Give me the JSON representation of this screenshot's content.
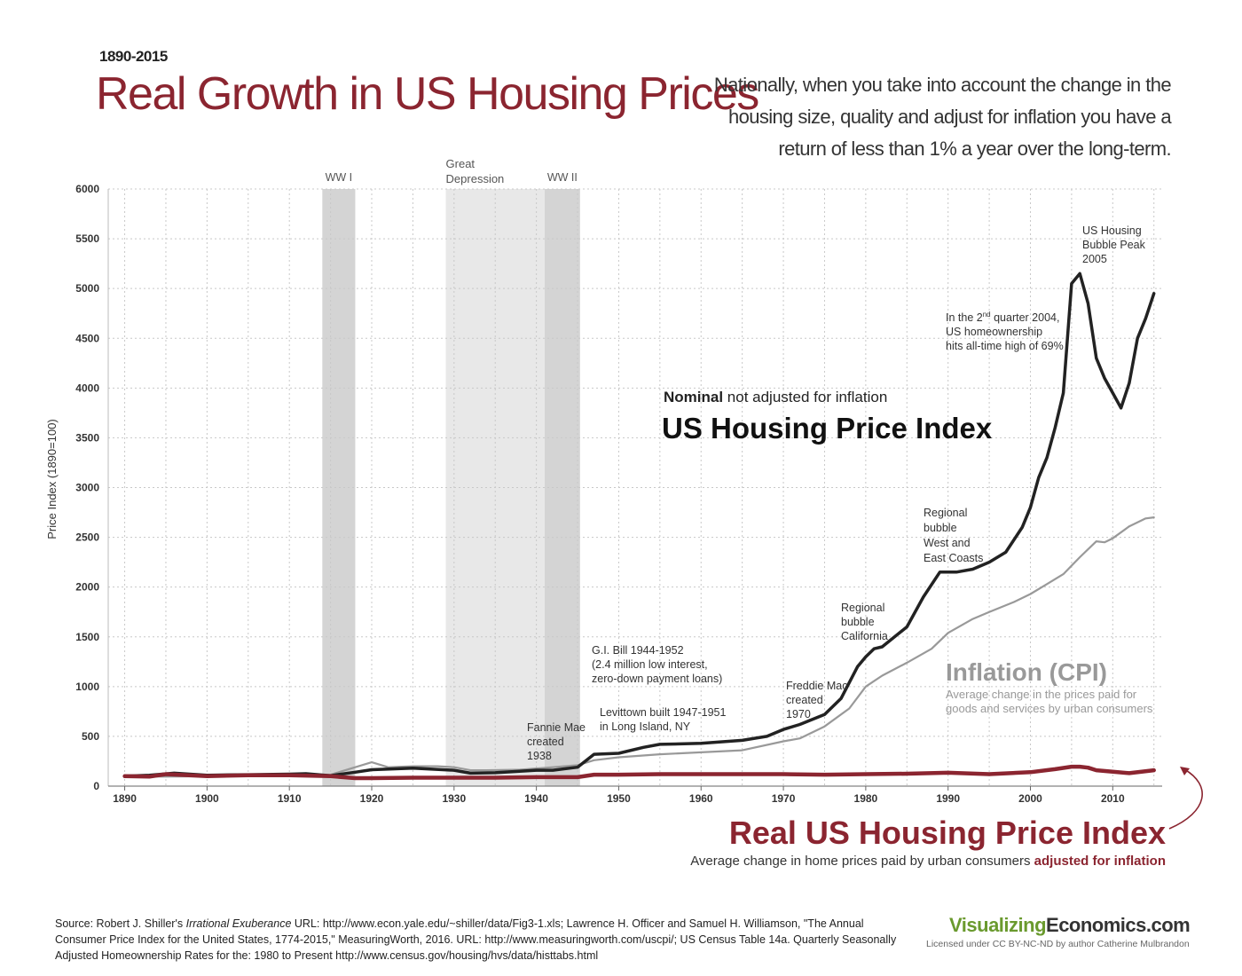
{
  "header": {
    "years": "1890-2015",
    "title": "Real Growth in US Housing Prices",
    "subtitle": "Nationally, when you take into account the change in the housing size, quality and adjust for inflation you have a return of less than 1% a year over the long-term."
  },
  "chart_data": {
    "type": "line",
    "ylabel": "Price Index  (1890=100)",
    "xlabel": "",
    "xlim": [
      1888,
      2016
    ],
    "ylim": [
      0,
      6000
    ],
    "grid": true,
    "x_ticks": [
      1890,
      1900,
      1910,
      1920,
      1930,
      1940,
      1950,
      1960,
      1970,
      1980,
      1990,
      2000,
      2010
    ],
    "y_ticks": [
      0,
      500,
      1000,
      1500,
      2000,
      2500,
      3000,
      3500,
      4000,
      4500,
      5000,
      5500,
      6000
    ],
    "periods": [
      {
        "label": "WW I",
        "start": 1914,
        "end": 1918,
        "color": "#d4d4d4"
      },
      {
        "label": "Great Depression",
        "start": 1929,
        "end": 1941,
        "color": "#e8e8e8"
      },
      {
        "label": "WW II",
        "start": 1941,
        "end": 1945.3,
        "color": "#d4d4d4"
      }
    ],
    "series": [
      {
        "name": "Inflation (CPI)",
        "color": "#999999",
        "x": [
          1890,
          1895,
          1900,
          1905,
          1910,
          1915,
          1918,
          1920,
          1922,
          1925,
          1928,
          1930,
          1932,
          1934,
          1938,
          1942,
          1945,
          1947,
          1950,
          1955,
          1960,
          1965,
          1970,
          1972,
          1975,
          1978,
          1980,
          1982,
          1985,
          1988,
          1990,
          1993,
          1995,
          1998,
          2000,
          2002,
          2004,
          2006,
          2008,
          2009,
          2010,
          2012,
          2014,
          2015
        ],
        "values": [
          100,
          95,
          100,
          105,
          115,
          115,
          190,
          240,
          190,
          200,
          200,
          190,
          160,
          160,
          165,
          190,
          210,
          260,
          290,
          320,
          340,
          360,
          450,
          480,
          600,
          780,
          1000,
          1110,
          1240,
          1380,
          1540,
          1680,
          1750,
          1850,
          1930,
          2030,
          2130,
          2300,
          2460,
          2450,
          2490,
          2610,
          2690,
          2700
        ]
      },
      {
        "name": "US Housing Price Index",
        "color": "#222222",
        "x": [
          1890,
          1893,
          1896,
          1900,
          1905,
          1910,
          1912,
          1915,
          1918,
          1920,
          1925,
          1930,
          1932,
          1935,
          1940,
          1942,
          1945,
          1947,
          1950,
          1953,
          1955,
          1960,
          1965,
          1968,
          1970,
          1972,
          1975,
          1977,
          1979,
          1980,
          1981,
          1982,
          1985,
          1987,
          1989,
          1991,
          1993,
          1995,
          1997,
          1999,
          2000,
          2001,
          2002,
          2003,
          2004,
          2005,
          2006,
          2007,
          2008,
          2009,
          2010,
          2011,
          2012,
          2013,
          2014,
          2015
        ],
        "values": [
          100,
          110,
          130,
          110,
          115,
          120,
          125,
          105,
          140,
          165,
          180,
          160,
          130,
          135,
          160,
          160,
          190,
          320,
          330,
          390,
          420,
          430,
          460,
          500,
          570,
          620,
          720,
          880,
          1200,
          1300,
          1380,
          1400,
          1600,
          1900,
          2150,
          2150,
          2180,
          2250,
          2350,
          2600,
          2800,
          3100,
          3300,
          3600,
          3950,
          5050,
          5150,
          4850,
          4300,
          4100,
          3950,
          3800,
          4050,
          4500,
          4700,
          4950
        ]
      },
      {
        "name": "Real US Housing Price Index",
        "color": "#8b2530",
        "x": [
          1890,
          1893,
          1895,
          1900,
          1905,
          1910,
          1915,
          1918,
          1920,
          1925,
          1930,
          1935,
          1940,
          1945,
          1947,
          1950,
          1955,
          1960,
          1965,
          1970,
          1975,
          1980,
          1985,
          1990,
          1995,
          2000,
          2003,
          2005,
          2006,
          2007,
          2008,
          2010,
          2012,
          2015
        ],
        "values": [
          100,
          95,
          120,
          100,
          110,
          110,
          100,
          80,
          80,
          85,
          85,
          85,
          90,
          90,
          115,
          115,
          120,
          120,
          120,
          120,
          115,
          120,
          125,
          135,
          120,
          140,
          170,
          195,
          195,
          185,
          160,
          145,
          130,
          160
        ]
      }
    ],
    "annotations": {
      "great_depression": "Great\nDepression",
      "fannie": "Fannie Mae\ncreated\n1938",
      "gibill": "G.I. Bill  1944-1952\n(2.4 million low interest,\nzero-down payment loans)",
      "levittown": "Levittown built 1947-1951\nin Long Island, NY",
      "freddie": "Freddie Mac\ncreated\n1970",
      "california": "Regional\nbubble\nCalifornia",
      "westeast": "Regional\nbubble\nWest and\nEast Coasts",
      "ownership_pre": "In the 2",
      "ownership_sup": "nd",
      "ownership_post": " quarter 2004,",
      "ownership_rest": "US homeownership\nhits all-time high of 69%",
      "peak": "US Housing\nBubble Peak\n2005"
    },
    "labels": {
      "nominal_bold": "Nominal",
      "nominal_rest": " not adjusted for inflation",
      "nominal_title": "US Housing Price Index",
      "cpi_title": "Inflation (CPI)",
      "cpi_desc": "Average change in the prices paid for\ngoods and services by urban consumers",
      "real_title": "Real US Housing Price Index",
      "real_desc": "Average change in home prices paid by urban consumers ",
      "real_desc_bold": "adjusted for inflation"
    }
  },
  "footer": {
    "source_prefix": "Source: Robert J. Shiller's ",
    "source_italic": "Irrational Exuberance",
    "source_rest": " URL: http://www.econ.yale.edu/~shiller/data/Fig3-1.xls; Lawrence H. Officer and Samuel H. Williamson, \"The Annual Consumer Price Index for the United States, 1774-2015,\" MeasuringWorth, 2016. URL: http://www.measuringworth.com/uscpi/; US Census Table 14a. Quarterly Seasonally Adjusted Homeownership Rates for the: 1980 to Present http://www.census.gov/housing/hvs/data/histtabs.html",
    "brand_a": "Visualizing",
    "brand_b": "Economics.com",
    "license": "Licensed under CC BY-NC-ND by author Catherine Mulbrandon"
  }
}
